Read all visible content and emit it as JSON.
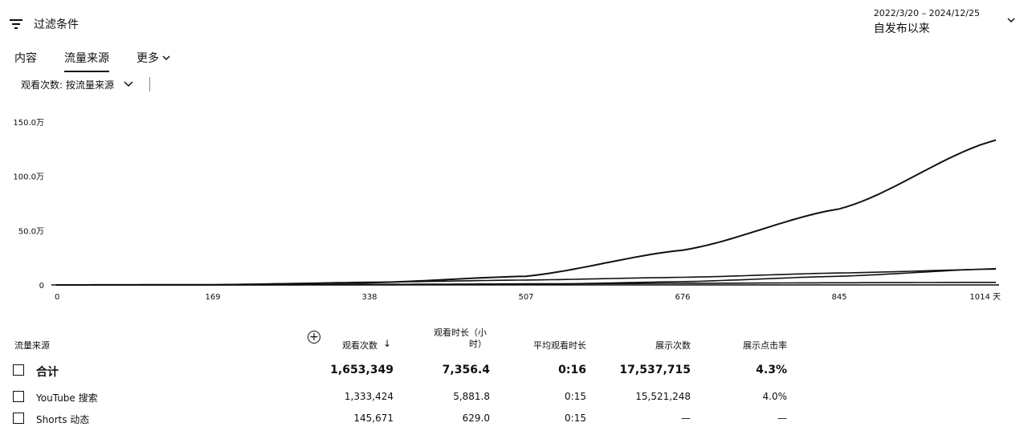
{
  "filter": {
    "label": "过滤条件",
    "icon": "filter-icon"
  },
  "date_range": {
    "range": "2022/3/20 – 2024/12/25",
    "name": "自发布以来"
  },
  "tabs": [
    {
      "label": "内容",
      "active": false
    },
    {
      "label": "流量来源",
      "active": true
    },
    {
      "label": "更多",
      "active": false
    }
  ],
  "metric": {
    "label": "观看次数:",
    "selected": "按流量来源"
  },
  "chart_data": {
    "type": "line",
    "x": [
      0,
      169,
      338,
      507,
      676,
      845,
      1014
    ],
    "x_tick_labels": [
      "0",
      "169",
      "338",
      "507",
      "676",
      "845",
      "1014 天"
    ],
    "y_tick_labels": [
      "0",
      "50.0万",
      "100.0万",
      "150.0万"
    ],
    "ylim": [
      0,
      1500000
    ],
    "xlim": [
      0,
      1014
    ],
    "grid": false,
    "series": [
      {
        "values": [
          0,
          2000,
          20000,
          80000,
          320000,
          700000,
          1333424
        ]
      },
      {
        "values": [
          0,
          1000,
          25000,
          45000,
          70000,
          110000,
          145671
        ]
      },
      {
        "values": [
          0,
          500,
          1500,
          4000,
          30000,
          80000,
          150000
        ]
      },
      {
        "values": [
          0,
          100,
          5000,
          10000,
          15000,
          20000,
          24000
        ]
      }
    ]
  },
  "table": {
    "columns": [
      {
        "label": "流量来源"
      },
      {
        "label": "观看次数",
        "sort": "↓"
      },
      {
        "label": "观看时长（小时）"
      },
      {
        "label": "平均观看时长"
      },
      {
        "label": "展示次数"
      },
      {
        "label": "展示点击率"
      }
    ],
    "total": {
      "name": "合计",
      "views": "1,653,349",
      "watch_hours": "7,356.4",
      "avg_duration": "0:16",
      "impressions": "17,537,715",
      "ctr": "4.3%"
    },
    "rows": [
      {
        "name": "YouTube 搜索",
        "views": "1,333,424",
        "watch_hours": "5,881.8",
        "avg_duration": "0:15",
        "impressions": "15,521,248",
        "ctr": "4.0%"
      },
      {
        "name": "Shorts 动态",
        "views": "145,671",
        "watch_hours": "629.0",
        "avg_duration": "0:15",
        "impressions": "—",
        "ctr": "—"
      }
    ]
  }
}
